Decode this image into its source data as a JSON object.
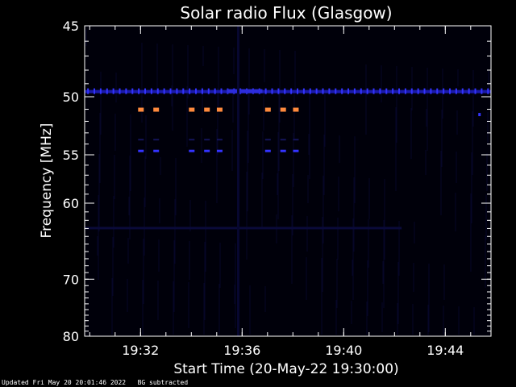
{
  "chart_data": {
    "type": "heatmap",
    "title": "Solar radio Flux (Glasgow)",
    "xlabel": "Start Time (20-May-22 19:30:00)",
    "ylabel": "Frequency [MHz]",
    "x_range_minutes_after_1930": [
      -0.2,
      15.8
    ],
    "y_range_mhz": [
      45,
      80
    ],
    "y_ticks": [
      "45",
      "50",
      "55",
      "60",
      "70",
      "80"
    ],
    "x_ticks": [
      "19:32",
      "19:36",
      "19:40",
      "19:44"
    ],
    "grid": false,
    "colors": {
      "background": "#000000",
      "baseline_band": "#1a1aaa",
      "bright_band": "#3333ff",
      "hot_spot": "#ff8a3d"
    },
    "features": {
      "band_50mhz_pulses_minutes": [
        2.0,
        2.6,
        4.0,
        4.6,
        5.1,
        7.0,
        7.6,
        8.1
      ],
      "band_55mhz_pulses_minutes": [
        2.0,
        2.6,
        4.0,
        4.6,
        5.1,
        7.0,
        7.6,
        8.1
      ]
    }
  },
  "footer": {
    "updated": "Updated Fri May 20 20:01:46 2022",
    "note": "BG subtracted"
  }
}
